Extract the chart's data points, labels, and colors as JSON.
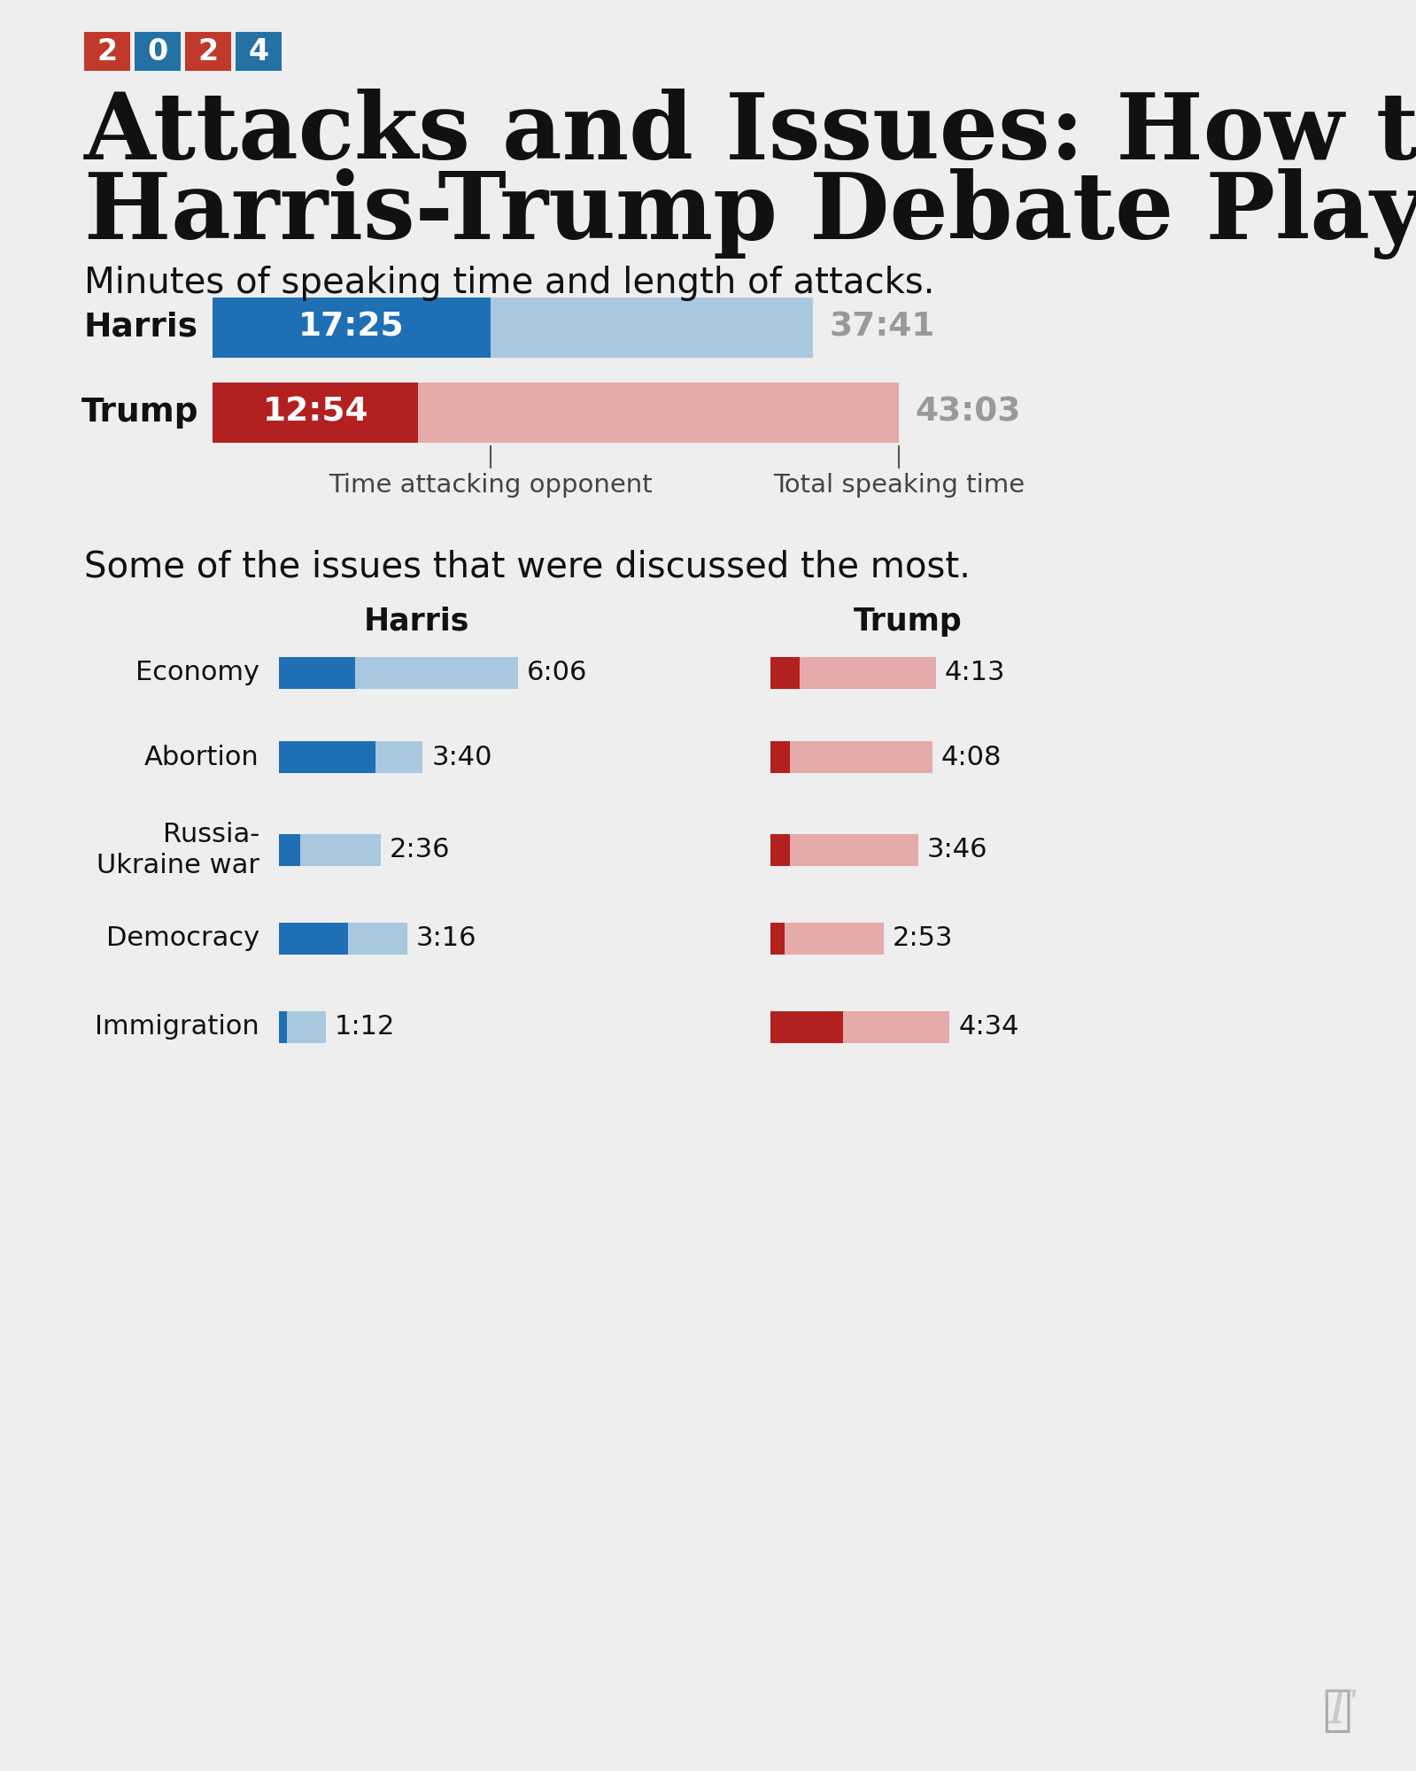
{
  "bg_color": "#eeeeee",
  "title_line1": "Attacks and Issues: How the",
  "title_line2": "Harris-Trump Debate Played Out",
  "subtitle1": "Minutes of speaking time and length of attacks.",
  "subtitle2": "Some of the issues that were discussed the most.",
  "badge_digits": [
    "2",
    "0",
    "2",
    "4"
  ],
  "badge_colors": [
    "#c0392b",
    "#2471a3",
    "#c0392b",
    "#2471a3"
  ],
  "harris_attack": 17.4167,
  "harris_total": 37.6833,
  "trump_attack": 12.9,
  "trump_total": 43.05,
  "harris_attack_label": "17:25",
  "harris_total_label": "37:41",
  "trump_attack_label": "12:54",
  "trump_total_label": "43:03",
  "harris_dark": "#1f6fb5",
  "harris_light": "#a8c8e0",
  "trump_dark": "#b32020",
  "trump_light": "#e5aaaa",
  "annotation_attack": "Time attacking opponent",
  "annotation_total": "Total speaking time",
  "issues": [
    "Economy",
    "Abortion",
    "Russia-\nUkraine war",
    "Democracy",
    "Immigration"
  ],
  "harris_issue_attack": [
    1.95,
    2.45,
    0.55,
    1.75,
    0.2
  ],
  "harris_issue_total": [
    6.1,
    3.6667,
    2.6,
    3.2667,
    1.2
  ],
  "trump_issue_attack": [
    0.75,
    0.5,
    0.5,
    0.35,
    1.85
  ],
  "trump_issue_total": [
    4.2167,
    4.1333,
    3.7667,
    2.8833,
    4.5667
  ],
  "harris_issue_labels": [
    "6:06",
    "3:40",
    "2:36",
    "3:16",
    "1:12"
  ],
  "trump_issue_labels": [
    "4:13",
    "4:08",
    "3:46",
    "2:53",
    "4:34"
  ],
  "text_color": "#111111",
  "gray_text": "#999999",
  "annotation_color": "#444444"
}
